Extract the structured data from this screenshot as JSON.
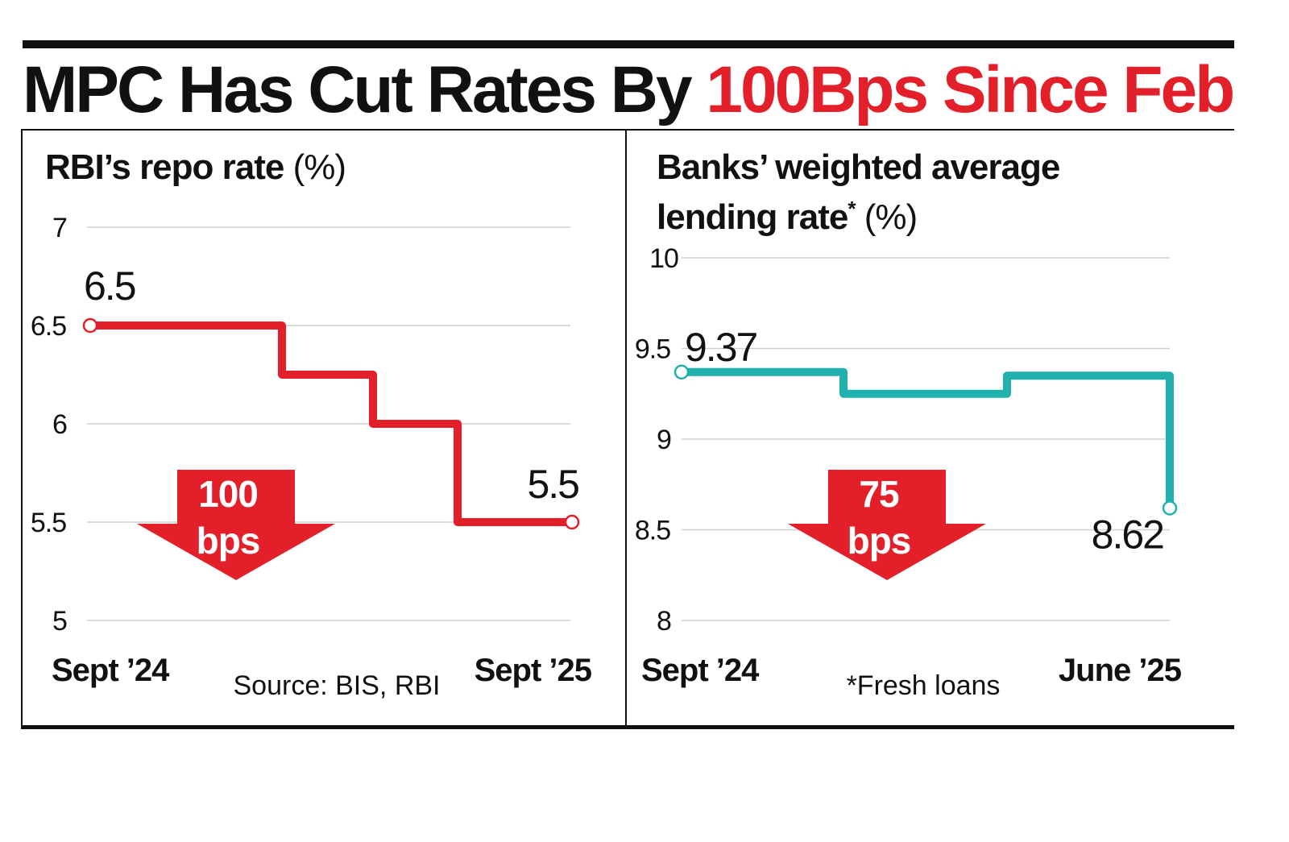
{
  "headline": {
    "part1": "MPC Has Cut Rates By",
    "part2": "100Bps Since Feb"
  },
  "colors": {
    "accent": "#e3202a",
    "teal": "#20b0ad",
    "grid": "#cfcfcf",
    "text": "#111111"
  },
  "chart_data": [
    {
      "type": "line",
      "step": true,
      "title": "RBI’s repo rate",
      "unit_suffix": " (%)",
      "ylim": [
        5,
        7
      ],
      "yticks": [
        "7",
        "6.5",
        "6",
        "5.5",
        "5"
      ],
      "ytick_values": [
        7,
        6.5,
        6,
        5.5,
        5
      ],
      "x_labels": [
        "Sept ’24",
        "Sept ’25"
      ],
      "series": [
        {
          "name": "Repo rate",
          "color": "#e3202a",
          "values": [
            6.5,
            6.5,
            6.25,
            6.25,
            6.0,
            6.0,
            5.5,
            5.5
          ]
        }
      ],
      "start_label": "6.5",
      "end_label": "5.5",
      "arrow": {
        "value": "100",
        "unit": "bps"
      },
      "footnote": "Source: BIS, RBI"
    },
    {
      "type": "line",
      "step": true,
      "title_line1": "Banks’ weighted average",
      "title_line2": "lending rate",
      "title_mark": "*",
      "unit_suffix": " (%)",
      "ylim": [
        8,
        10
      ],
      "yticks": [
        "10",
        "9.5",
        "9",
        "8.5",
        "8"
      ],
      "ytick_values": [
        10,
        9.5,
        9,
        8.5,
        8
      ],
      "x_labels": [
        "Sept ’24",
        "June ’25"
      ],
      "series": [
        {
          "name": "WALR fresh loans",
          "color": "#20b0ad",
          "values": [
            9.37,
            9.37,
            9.25,
            9.25,
            9.35,
            9.35,
            8.62
          ]
        }
      ],
      "start_label": "9.37",
      "end_label": "8.62",
      "arrow": {
        "value": "75",
        "unit": "bps"
      },
      "footnote": "*Fresh loans"
    }
  ]
}
